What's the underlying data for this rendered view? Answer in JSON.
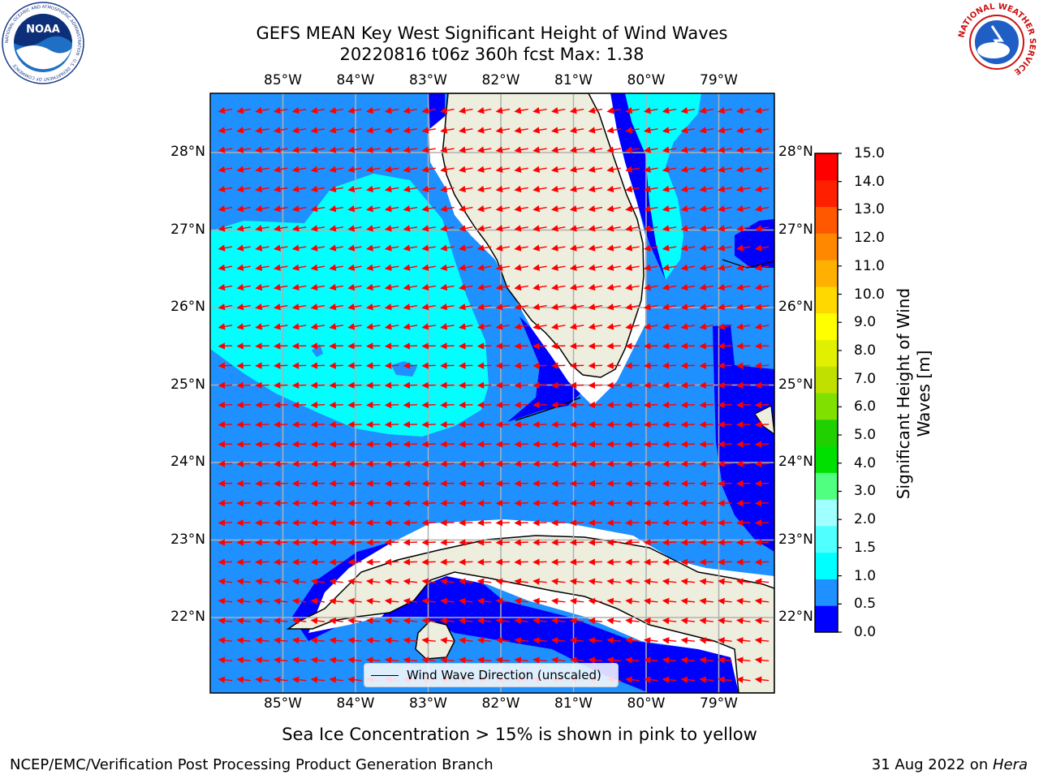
{
  "title_line1": "GEFS MEAN Key West Significant Height of Wind Waves",
  "title_line2": "20220816 t06z 360h fcst   Max: 1.38",
  "lon_labels": [
    "85°W",
    "84°W",
    "83°W",
    "82°W",
    "81°W",
    "80°W",
    "79°W"
  ],
  "lat_labels": [
    "28°N",
    "27°N",
    "26°N",
    "25°N",
    "24°N",
    "23°N",
    "22°N"
  ],
  "lon_values": [
    -85,
    -84,
    -83,
    -82,
    -81,
    -80,
    -79
  ],
  "lat_values": [
    28,
    27,
    26,
    25,
    24,
    23,
    22
  ],
  "legend_label": "Wind Wave Direction (unscaled)",
  "colorbar": {
    "title": "Significant Height of Wind Waves [m]",
    "title_line1": "Significant Height of Wind",
    "title_line2": "Waves [m]",
    "ticks": [
      "15.0",
      "14.0",
      "13.0",
      "12.0",
      "11.0",
      "10.0",
      "9.0",
      "8.0",
      "7.0",
      "6.0",
      "5.0",
      "4.0",
      "3.0",
      "2.0",
      "1.5",
      "1.0",
      "0.5",
      "0.0"
    ],
    "colors_bottom_to_top": [
      "#0000ff",
      "#1e90ff",
      "#00ffff",
      "#50ffff",
      "#a0ffff",
      "#50ff80",
      "#00e000",
      "#20d000",
      "#80e000",
      "#c0e000",
      "#e0f000",
      "#ffff00",
      "#ffd800",
      "#ffb000",
      "#ff8800",
      "#ff5800",
      "#ff2000",
      "#ff0000"
    ]
  },
  "colors": {
    "ocean": "#1e90ff",
    "light_wave": "#00ffff",
    "calm": "#0000ff",
    "land": "#eeeede",
    "coast_buffer": "#ffffff",
    "arrow": "#ff0000",
    "grid": "#b0b0b0"
  },
  "logos": {
    "noaa": "NOAA",
    "noaa_ring": "NATIONAL OCEANIC AND ATMOSPHERIC ADMINISTRATION · U.S. DEPARTMENT OF COMMERCE",
    "nws_ring": "NATIONAL WEATHER SERVICE"
  },
  "sea_ice_note": "Sea Ice Concentration > 15% is shown in pink to yellow",
  "footer_left": "NCEP/EMC/Verification Post Processing Product Generation Branch",
  "footer_right_prefix": "31 Aug 2022 on ",
  "footer_right_host": "Hera"
}
